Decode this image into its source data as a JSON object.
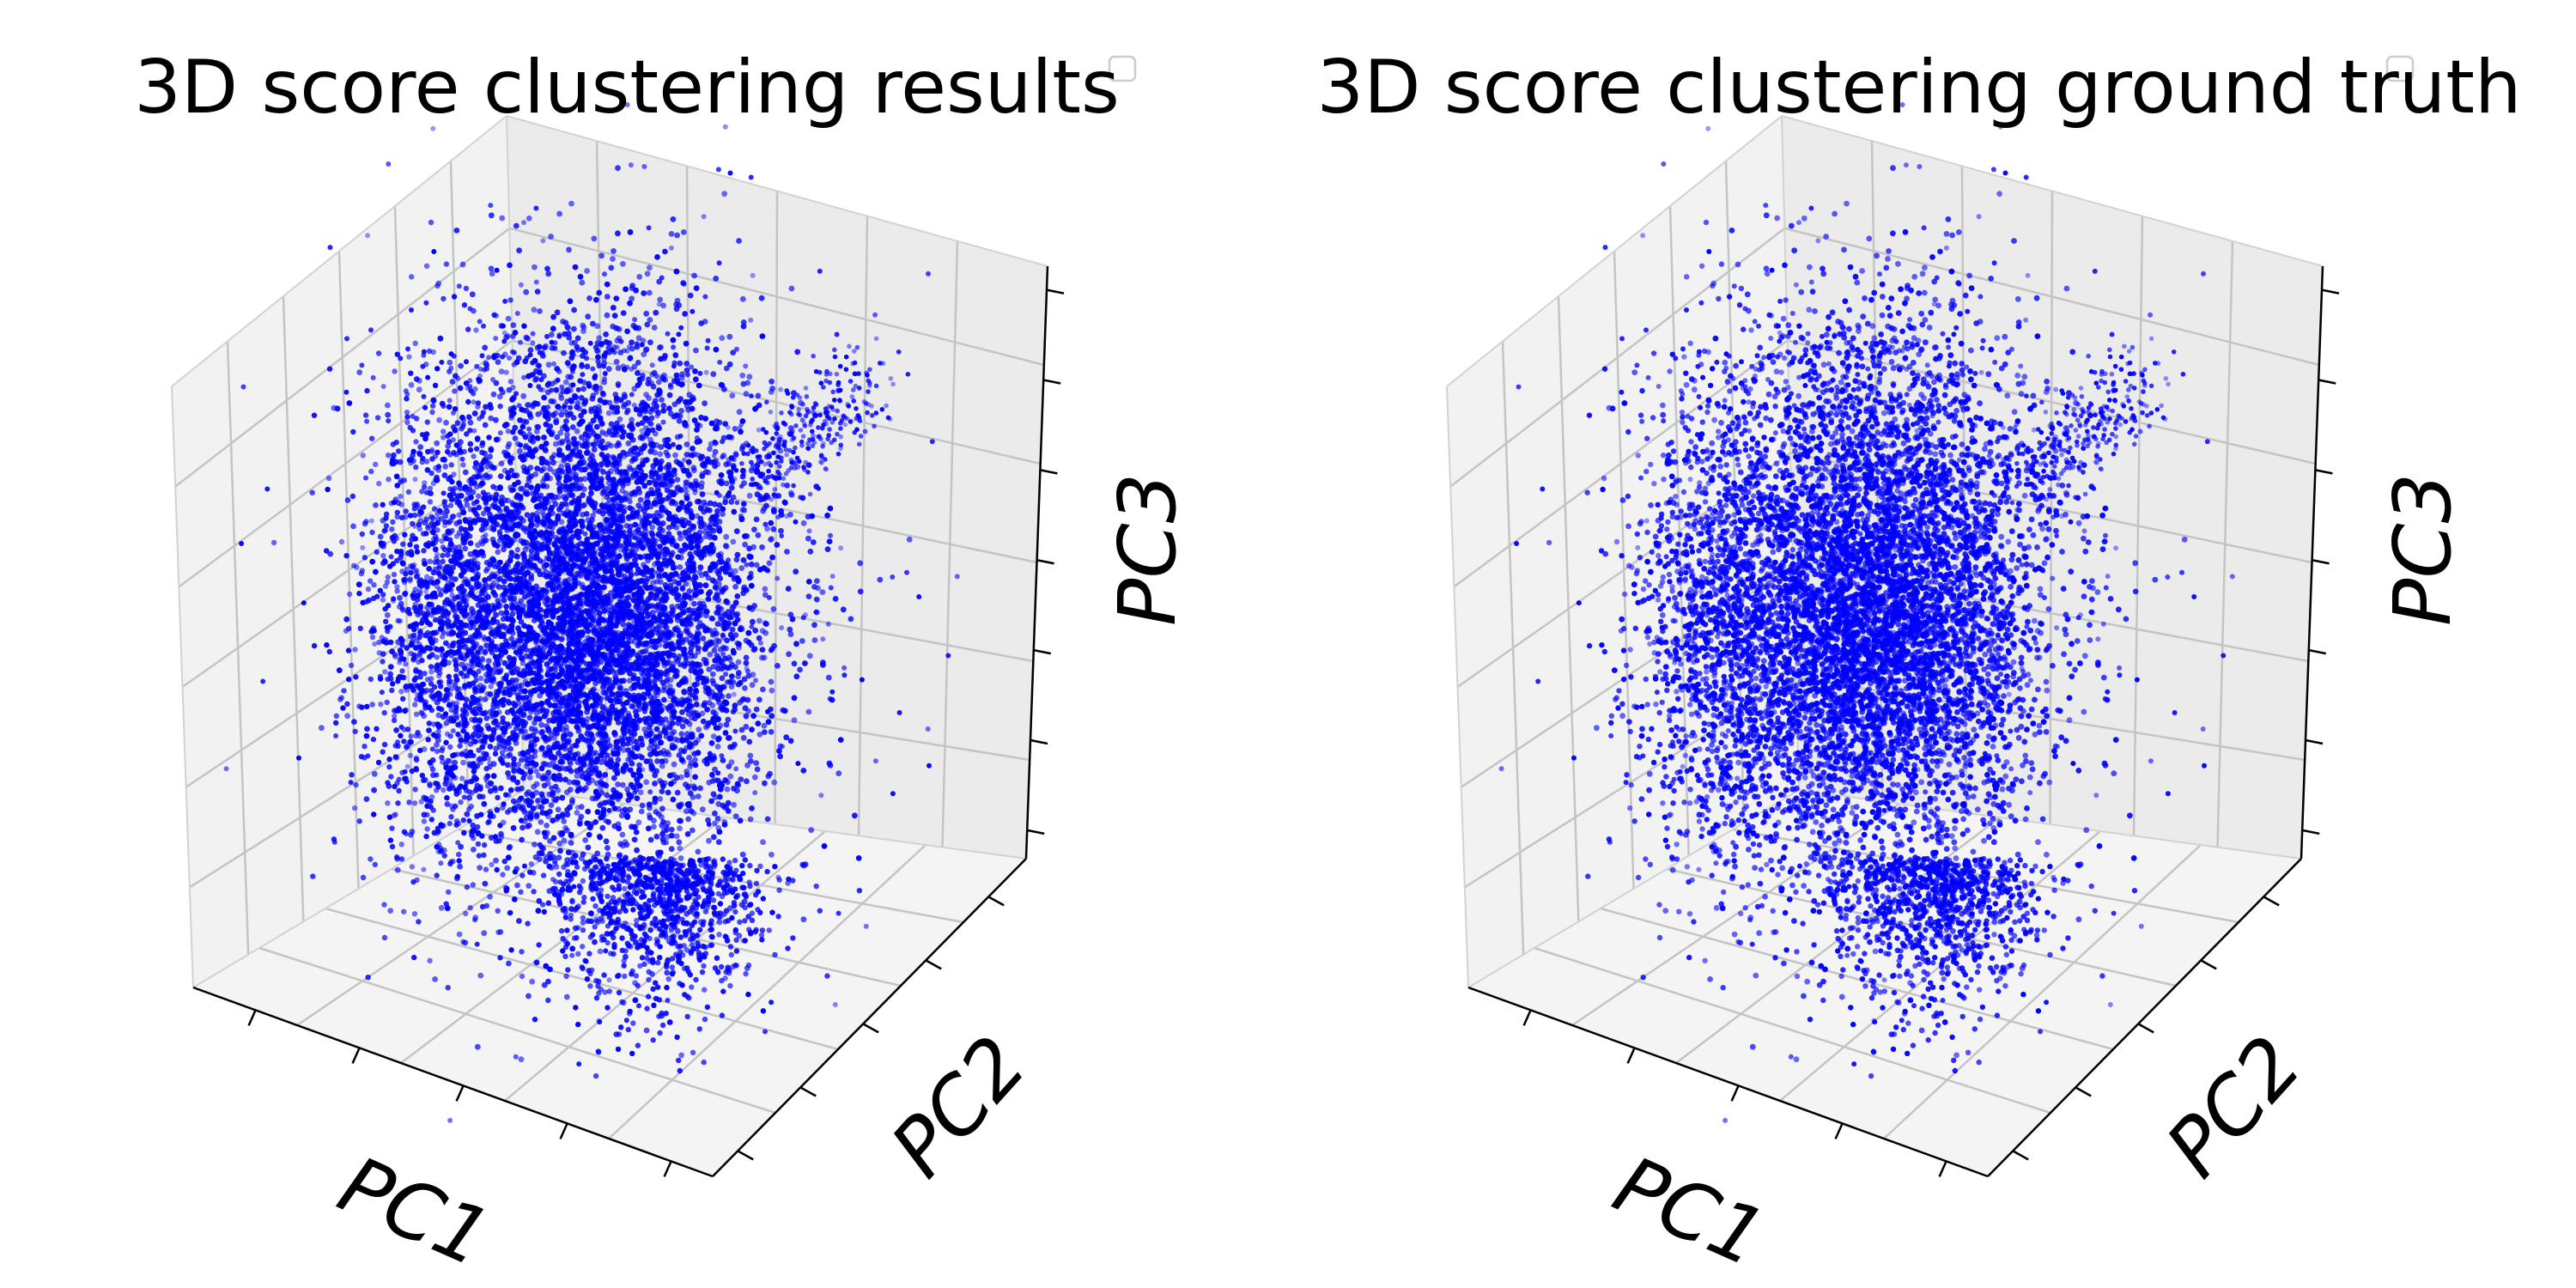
{
  "chart_data": [
    {
      "type": "scatter",
      "title": "3D score clustering results",
      "xlabel": "PC1",
      "ylabel": "PC2",
      "zlabel": "PC3",
      "projection": "3d",
      "grid": true,
      "legend": "top-right (empty)",
      "series": [
        {
          "color": "#0000ff",
          "n_points": 9000,
          "distribution": "dense central cluster with sparse tails"
        }
      ]
    },
    {
      "type": "scatter",
      "title": "3D score clustering ground truth",
      "xlabel": "PC1",
      "ylabel": "PC2",
      "zlabel": "PC3",
      "projection": "3d",
      "grid": true,
      "legend": "top-right (empty)",
      "series": [
        {
          "color": "#0000ff",
          "n_points": 9000,
          "distribution": "dense central cluster with sparse tails"
        }
      ]
    }
  ]
}
